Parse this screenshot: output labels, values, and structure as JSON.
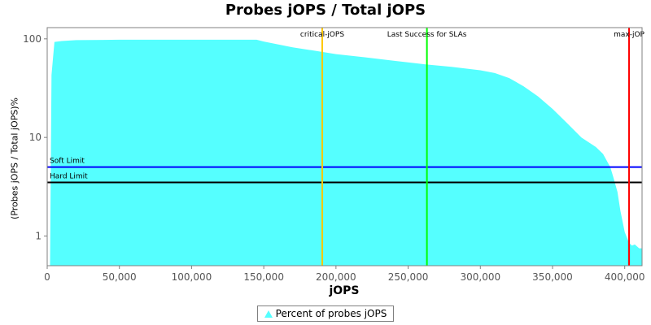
{
  "chart_data": {
    "type": "area",
    "title": "Probes jOPS / Total jOPS",
    "xlabel": "jOPS",
    "ylabel": "(Probes jOPS / Total jOPS)%",
    "y_scale": "log",
    "xlim": [
      0,
      412000
    ],
    "ylim": [
      0.5,
      130
    ],
    "x_ticks": [
      0,
      50000,
      100000,
      150000,
      200000,
      250000,
      300000,
      350000,
      400000
    ],
    "x_tick_labels": [
      "0",
      "50,000",
      "100,000",
      "150,000",
      "200,000",
      "250,000",
      "300,000",
      "350,000",
      "400,000"
    ],
    "y_ticks": [
      1,
      10,
      100
    ],
    "y_tick_labels": [
      "1",
      "10",
      "100"
    ],
    "series": [
      {
        "name": "Percent of probes jOPS",
        "color": "#55ffff",
        "x": [
          2000,
          3000,
          5000,
          10000,
          20000,
          50000,
          100000,
          145000,
          150000,
          170000,
          190000,
          200000,
          220000,
          240000,
          262000,
          280000,
          300000,
          310000,
          320000,
          330000,
          340000,
          350000,
          360000,
          370000,
          380000,
          385000,
          390000,
          392000,
          395000,
          397000,
          400000,
          403000,
          405000,
          407000,
          410000,
          412000
        ],
        "y": [
          0.5,
          43,
          93,
          95,
          97,
          98,
          98,
          98,
          94,
          82,
          74,
          70,
          65,
          60,
          55,
          52,
          48,
          45,
          40,
          33,
          26,
          19.5,
          14,
          10,
          8,
          6.8,
          5,
          4,
          2.8,
          1.8,
          1.1,
          0.85,
          0.8,
          0.82,
          0.75,
          0.75
        ]
      }
    ],
    "vertical_markers": [
      {
        "label": "critical-jOPS",
        "x": 190500,
        "color": "#ffc800"
      },
      {
        "label": "Last Success for SLAs",
        "x": 263000,
        "color": "#00ff00"
      },
      {
        "label": "max-jOP",
        "x": 403000,
        "color": "#ff0000"
      }
    ],
    "horizontal_markers": [
      {
        "label": "Soft Limit",
        "y": 5,
        "color": "#0000ff"
      },
      {
        "label": "Hard Limit",
        "y": 3.5,
        "color": "#000000"
      }
    ],
    "legend_position": "bottom-center",
    "grid": false
  }
}
